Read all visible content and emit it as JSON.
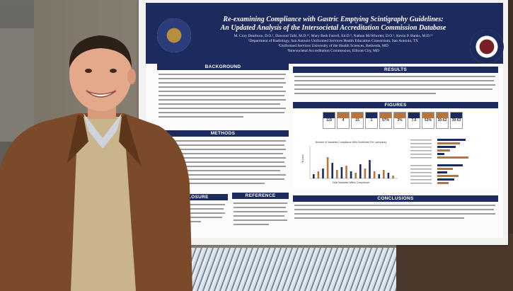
{
  "poster": {
    "title_line1": "Re-examining Compliance with Gastric Emptying Scintigraphy Guidelines:",
    "title_line2": "An Updated Analysis of the Intersocietal Accreditation Commission Database",
    "authors": "M. Cory Dearborn, D.O.¹, Dawood Tafti, M.D.¹², Mary Beth Farrell, Ed.D.³, Nathan McWhorter, D.O.¹, Kevin P. Banks, M.D.¹²",
    "affiliation1": "¹Department of Radiology, San Antonio Uniformed Services Health Education Consortium, San Antonio, TX",
    "affiliation2": "²Uniformed Services University of the Health Sciences, Bethesda, MD",
    "affiliation3": "³Intersocietal Accreditation Commission, Ellicott City, MD",
    "sections": {
      "background": "BACKGROUND",
      "methods": "METHODS",
      "disclosure": "DISCLOSURE",
      "reference": "REFERENCE",
      "results": "RESULTS",
      "figures": "FIGURES",
      "conclusions": "CONCLUSIONS"
    },
    "tiles": [
      {
        "value": "119",
        "color": "#1d2a5e"
      },
      {
        "value": "4",
        "color": "#b7753c"
      },
      {
        "value": "15",
        "color": "#b7753c"
      },
      {
        "value": "1",
        "color": "#1d2a5e"
      },
      {
        "value": "97%",
        "color": "#b7753c"
      },
      {
        "value": "3%",
        "color": "#b7753c"
      },
      {
        "value": "7.5",
        "color": "#1d2a5e"
      },
      {
        "value": "53%",
        "color": "#b7753c"
      },
      {
        "value": "30-62",
        "color": "#b7753c"
      },
      {
        "value": "39-63",
        "color": "#1d2a5e"
      }
    ],
    "chart_title": "Number of Variables Compliance With Guidelines Per Laboratory",
    "chart_xlabel": "Total Variables Within Compliance",
    "chart_ylabel": "% Labs"
  },
  "colors": {
    "navy": "#1d2a5e",
    "copper": "#b7753c"
  }
}
